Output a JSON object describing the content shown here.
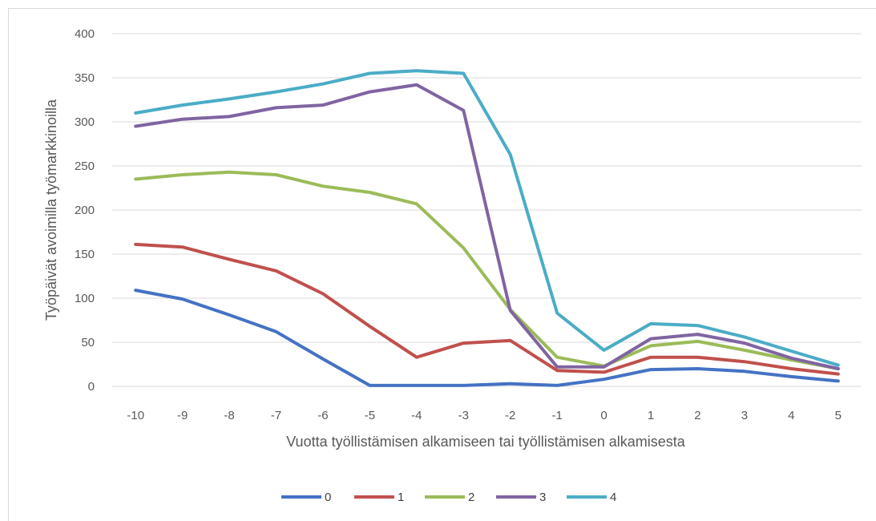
{
  "chart_data": {
    "type": "line",
    "title": "",
    "xlabel": "Vuotta työllistämisen alkamiseen tai työllistämisen alkamisesta",
    "ylabel": "Työpäivät avoimilla työmarkkinoilla",
    "x": [
      "-10",
      "-9",
      "-8",
      "-7",
      "-6",
      "-5",
      "-4",
      "-3",
      "-2",
      "-1",
      "0",
      "1",
      "2",
      "3",
      "4",
      "5"
    ],
    "ylim": [
      0,
      400
    ],
    "yticks": [
      "0",
      "50",
      "100",
      "150",
      "200",
      "250",
      "300",
      "350",
      "400"
    ],
    "grid": true,
    "legend_position": "bottom",
    "series": [
      {
        "name": "0",
        "color": "#4472C4",
        "values": [
          109,
          99,
          81,
          62,
          31,
          1,
          1,
          1,
          3,
          1,
          8,
          19,
          20,
          17,
          11,
          6
        ]
      },
      {
        "name": "1",
        "color": "#C0504D",
        "values": [
          161,
          158,
          144,
          131,
          105,
          68,
          33,
          49,
          52,
          18,
          16,
          33,
          33,
          28,
          20,
          14
        ]
      },
      {
        "name": "2",
        "color": "#9BBB59",
        "values": [
          235,
          240,
          243,
          240,
          227,
          220,
          207,
          157,
          87,
          33,
          23,
          46,
          51,
          41,
          30,
          20
        ]
      },
      {
        "name": "3",
        "color": "#8064A2",
        "values": [
          295,
          303,
          306,
          316,
          319,
          334,
          342,
          313,
          86,
          22,
          22,
          54,
          59,
          49,
          32,
          20
        ]
      },
      {
        "name": "4",
        "color": "#4BACC6",
        "values": [
          310,
          319,
          326,
          334,
          343,
          355,
          358,
          355,
          263,
          83,
          41,
          71,
          69,
          56,
          40,
          24
        ]
      }
    ]
  }
}
